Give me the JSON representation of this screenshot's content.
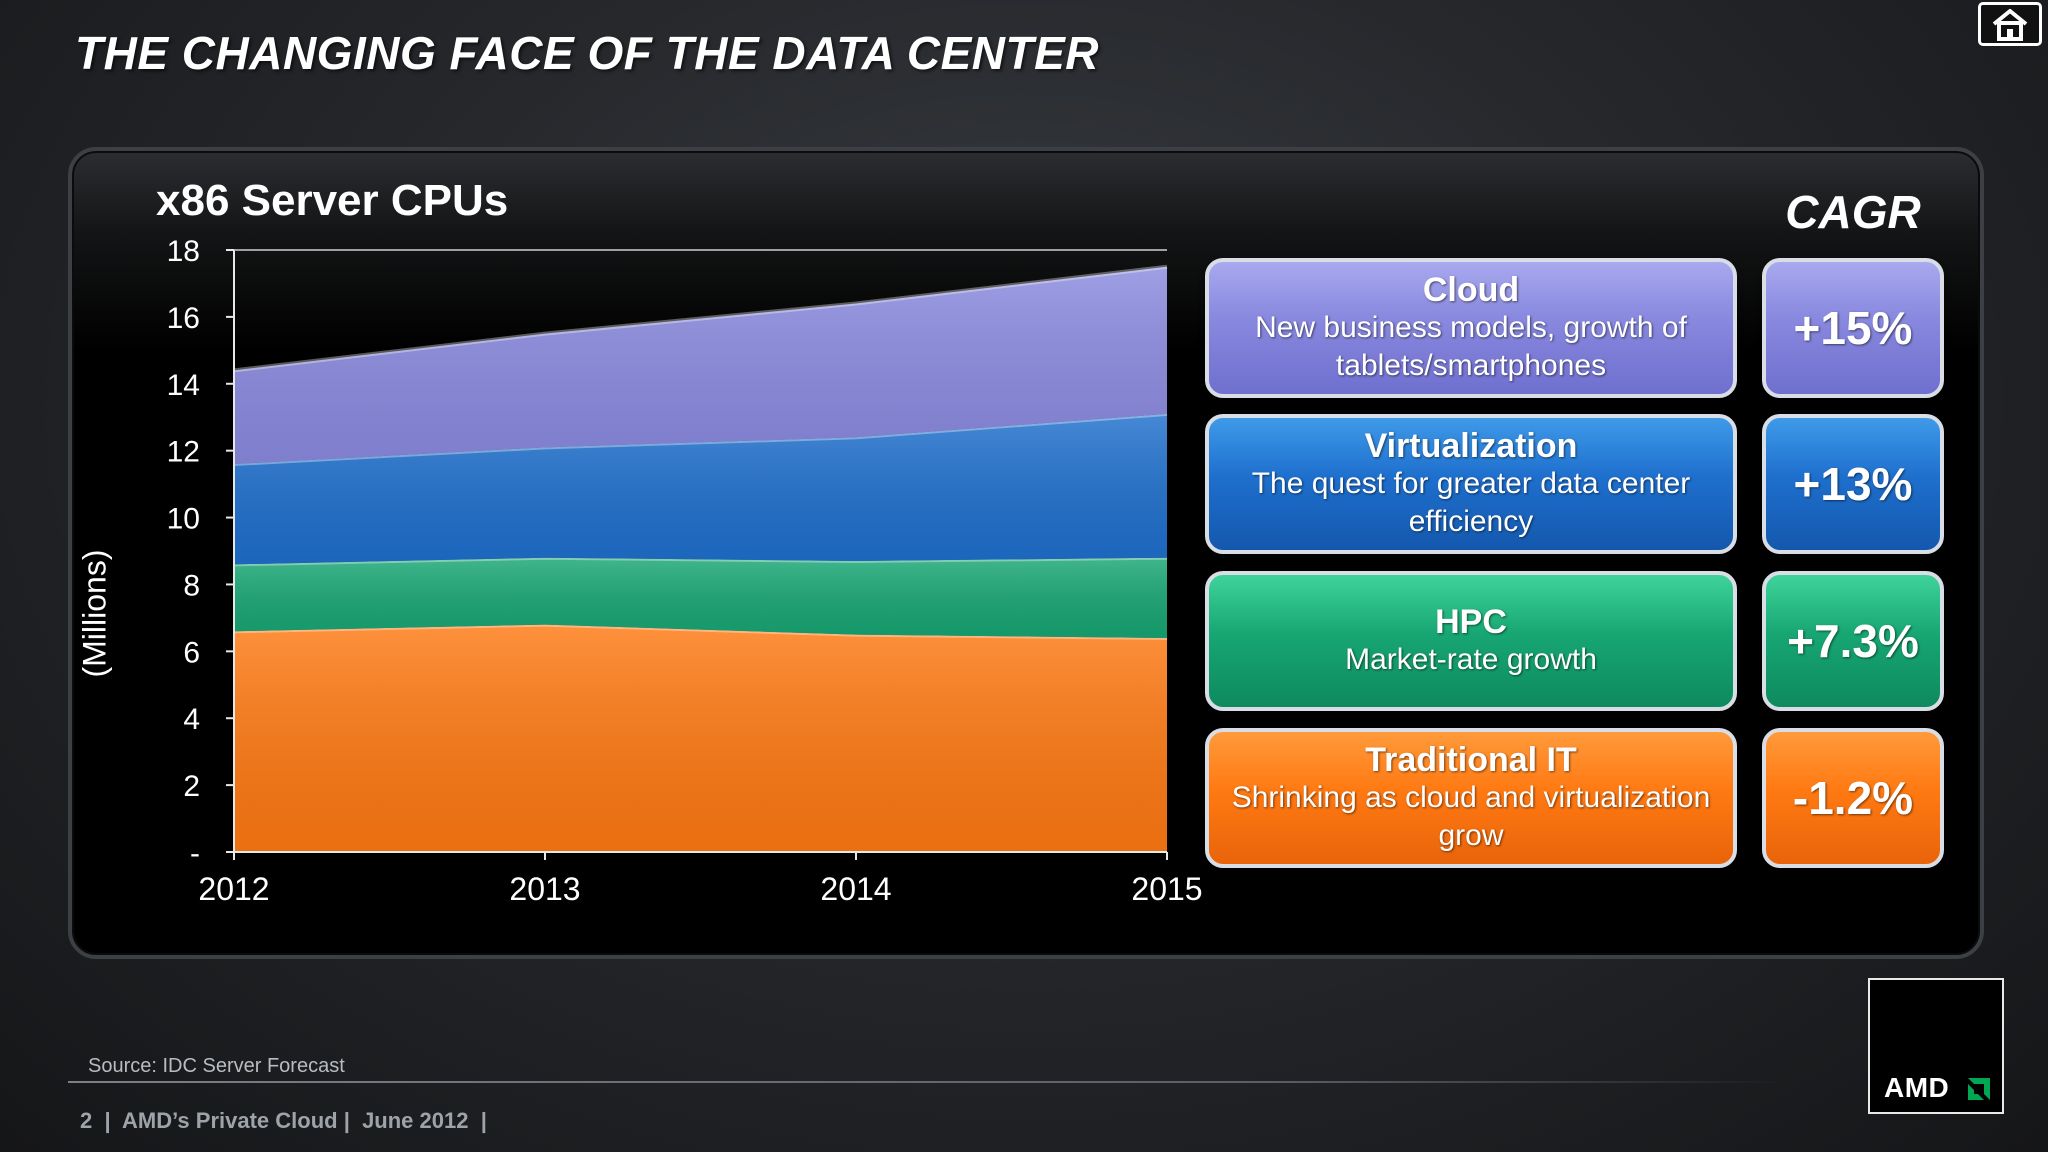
{
  "slide": {
    "title": "THE CHANGING FACE OF THE DATA CENTER"
  },
  "chart_data": {
    "type": "area",
    "stacked": true,
    "title": "x86 Server CPUs",
    "ylabel": "(Millions)",
    "xlabel": "",
    "ylim": [
      0,
      18
    ],
    "yticks": [
      "-",
      "2",
      "4",
      "6",
      "8",
      "10",
      "12",
      "14",
      "16",
      "18"
    ],
    "yticks_values": [
      0,
      2,
      4,
      6,
      8,
      10,
      12,
      14,
      16,
      18
    ],
    "categories": [
      "2012",
      "2013",
      "2014",
      "2015"
    ],
    "grid": false,
    "series": [
      {
        "name": "Traditional IT",
        "color": "#ff7912",
        "values": [
          6.6,
          6.8,
          6.5,
          6.4
        ]
      },
      {
        "name": "HPC",
        "color": "#17a673",
        "values": [
          2.0,
          2.0,
          2.2,
          2.4
        ]
      },
      {
        "name": "Virtualization",
        "color": "#1e6fcd",
        "values": [
          3.0,
          3.3,
          3.7,
          4.3
        ]
      },
      {
        "name": "Cloud",
        "color": "#8a8ae0",
        "values": [
          2.8,
          3.4,
          4.0,
          4.4
        ]
      }
    ]
  },
  "cagr_header": "CAGR",
  "categories": [
    {
      "name": "Cloud",
      "description": "New business models, growth of tablets/smartphones",
      "cagr": "+15%"
    },
    {
      "name": "Virtualization",
      "description": "The quest for greater data center efficiency",
      "cagr": "+13%"
    },
    {
      "name": "HPC",
      "description": "Market-rate growth",
      "cagr": "+7.3%"
    },
    {
      "name": "Traditional IT",
      "description": "Shrinking as cloud and virtualization grow",
      "cagr": "-1.2%"
    }
  ],
  "source": "Source: IDC Server Forecast",
  "footer": "2  |  AMD’s Private Cloud |  June 2012  |",
  "logo": {
    "text": "AMD",
    "icon": "amd-arrow-icon"
  },
  "icons": {
    "home": "home-icon"
  }
}
